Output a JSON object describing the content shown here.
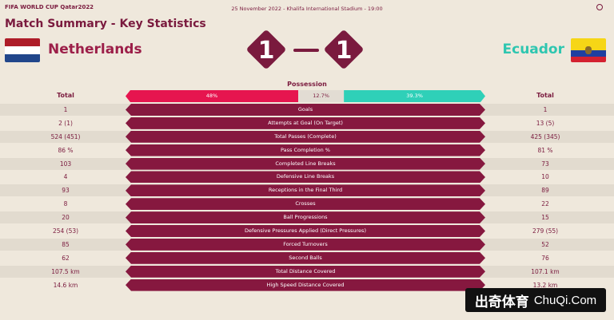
{
  "header": {
    "logo_text": "FIFA WORLD CUP Qatar2022",
    "match_info": "25 November 2022 - Khalifa International Stadium - 19:00",
    "globe_icon": "globe-icon"
  },
  "page_title": "Match Summary - Key Statistics",
  "home": {
    "name": "Netherlands",
    "score": "1",
    "flag_colors": [
      "#ae1c28",
      "#ffffff",
      "#21468b"
    ]
  },
  "away": {
    "name": "Ecuador",
    "score": "1",
    "flag_colors": [
      "#f6d616",
      "#1f3fa0",
      "#d42130"
    ]
  },
  "possession": {
    "label": "Possession",
    "home": "48%",
    "contest": "12.7%",
    "away": "39.3%",
    "home_value": 48,
    "contest_value": 12.7,
    "away_value": 39.3
  },
  "totals": {
    "home": "Total",
    "away": "Total"
  },
  "stats": [
    {
      "label": "Goals",
      "home": "1",
      "away": "1"
    },
    {
      "label": "Attempts at Goal (On Target)",
      "home": "2 (1)",
      "away": "13 (5)"
    },
    {
      "label": "Total Passes (Complete)",
      "home": "524 (451)",
      "away": "425 (345)"
    },
    {
      "label": "Pass Completion %",
      "home": "86 %",
      "away": "81 %"
    },
    {
      "label": "Completed Line Breaks",
      "home": "103",
      "away": "73"
    },
    {
      "label": "Defensive Line Breaks",
      "home": "4",
      "away": "10"
    },
    {
      "label": "Receptions in the Final Third",
      "home": "93",
      "away": "89"
    },
    {
      "label": "Crosses",
      "home": "8",
      "away": "22"
    },
    {
      "label": "Ball Progressions",
      "home": "20",
      "away": "15"
    },
    {
      "label": "Defensive Pressures Applied (Direct Pressures)",
      "home": "254 (53)",
      "away": "279 (55)"
    },
    {
      "label": "Forced Turnovers",
      "home": "85",
      "away": "52"
    },
    {
      "label": "Second Balls",
      "home": "62",
      "away": "76"
    },
    {
      "label": "Total Distance Covered",
      "home": "107.5 km",
      "away": "107.1 km"
    },
    {
      "label": "High Speed Distance Covered",
      "home": "14.6 km",
      "away": "13.2 km"
    }
  ],
  "colors": {
    "background": "#efe8dc",
    "primary": "#7a1a3e",
    "home_accent": "#e6154f",
    "away_accent": "#2fd0b8"
  },
  "watermark": {
    "cn": "出奇体育",
    "en": "ChuQi.Com"
  }
}
